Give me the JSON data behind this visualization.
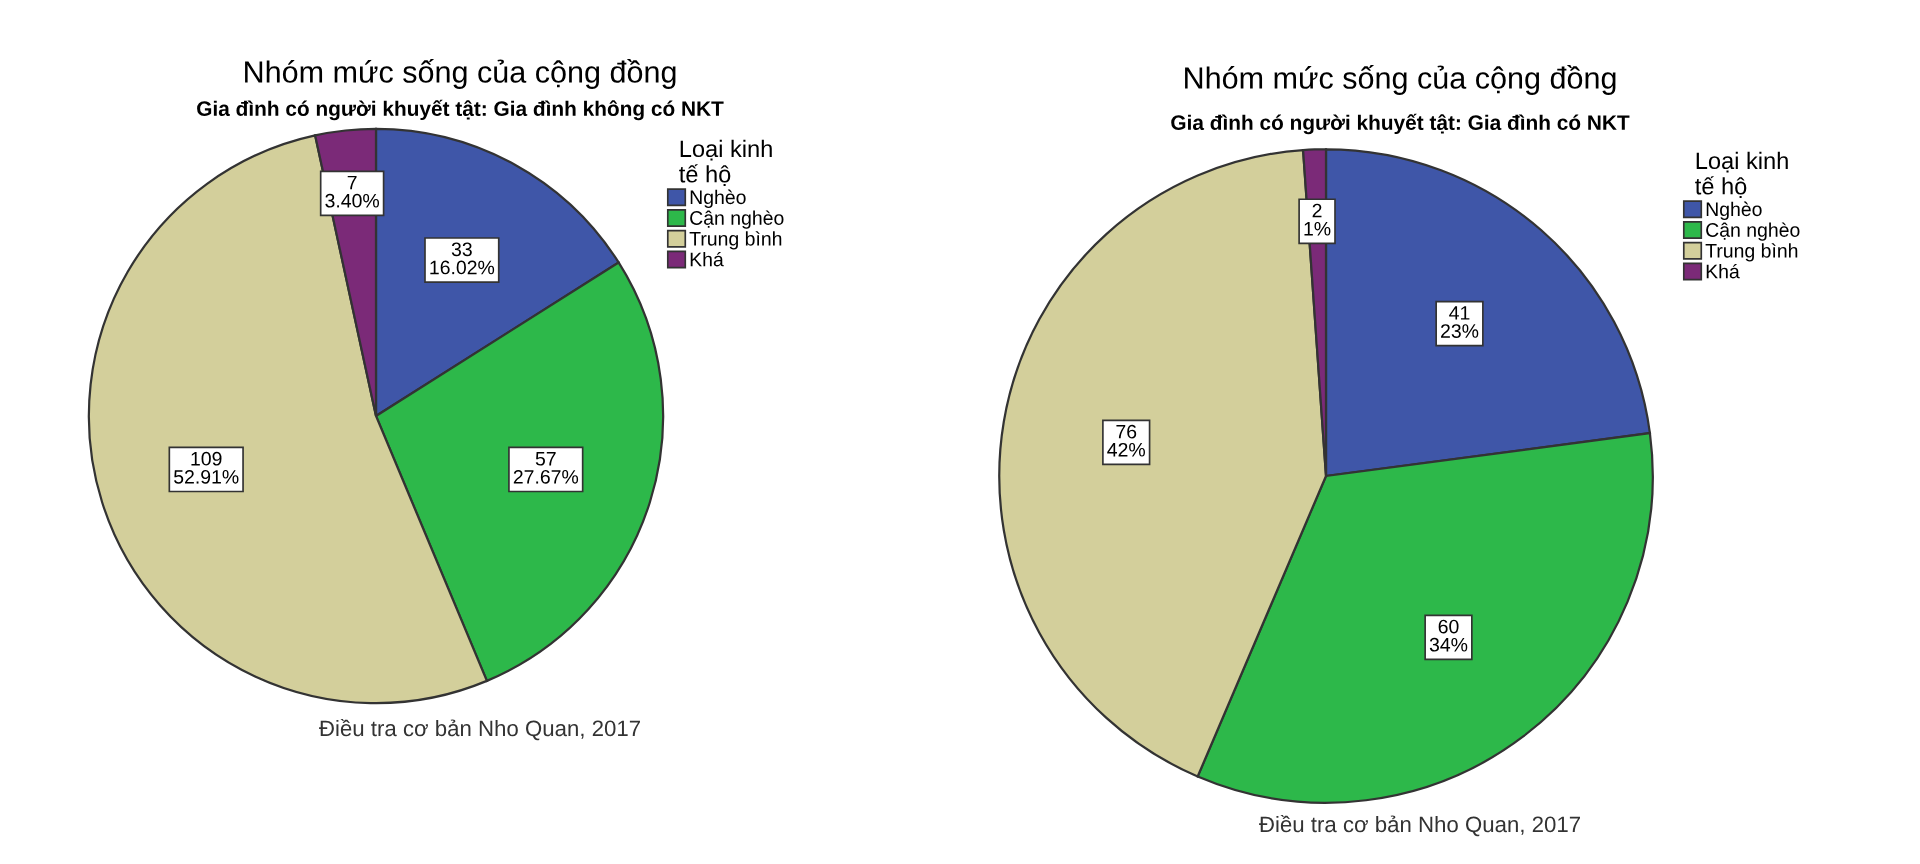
{
  "chart_data": [
    {
      "type": "pie",
      "title": "Nhóm mức sống của cộng đồng",
      "subtitle": "Gia đình có người khuyết tật: Gia đình không có NKT",
      "legend_title": "Loại kinh\ntế hộ",
      "legend": "top right",
      "categories": [
        "Nghèo",
        "Cận nghèo",
        "Trung bình",
        "Khá"
      ],
      "values": [
        33,
        57,
        109,
        7
      ],
      "colors": [
        "#3f56a8",
        "#2db84a",
        "#d3cf9b",
        "#7b2a78"
      ],
      "value_labels": [
        "33\n16.02%",
        "57\n27.67%",
        "109\n52.91%",
        "7\n3.40%"
      ],
      "annotations": [
        "Điều tra cơ bản Nho Quan, 2017"
      ]
    },
    {
      "type": "pie",
      "title": "Nhóm mức sống của cộng đồng",
      "subtitle": "Gia đình có người khuyết tật: Gia đình có NKT",
      "legend_title": "Loại kinh\ntế hộ",
      "legend": "top right",
      "categories": [
        "Nghèo",
        "Cận nghèo",
        "Trung bình",
        "Khá"
      ],
      "values": [
        41,
        60,
        76,
        2
      ],
      "colors": [
        "#3f56a8",
        "#2db84a",
        "#d3cf9b",
        "#7b2a78"
      ],
      "value_labels": [
        "41\n23%",
        "60\n34%",
        "76\n42%",
        "2\n1%"
      ],
      "annotations": [
        "Điều tra cơ bản Nho Quan, 2017"
      ]
    }
  ]
}
